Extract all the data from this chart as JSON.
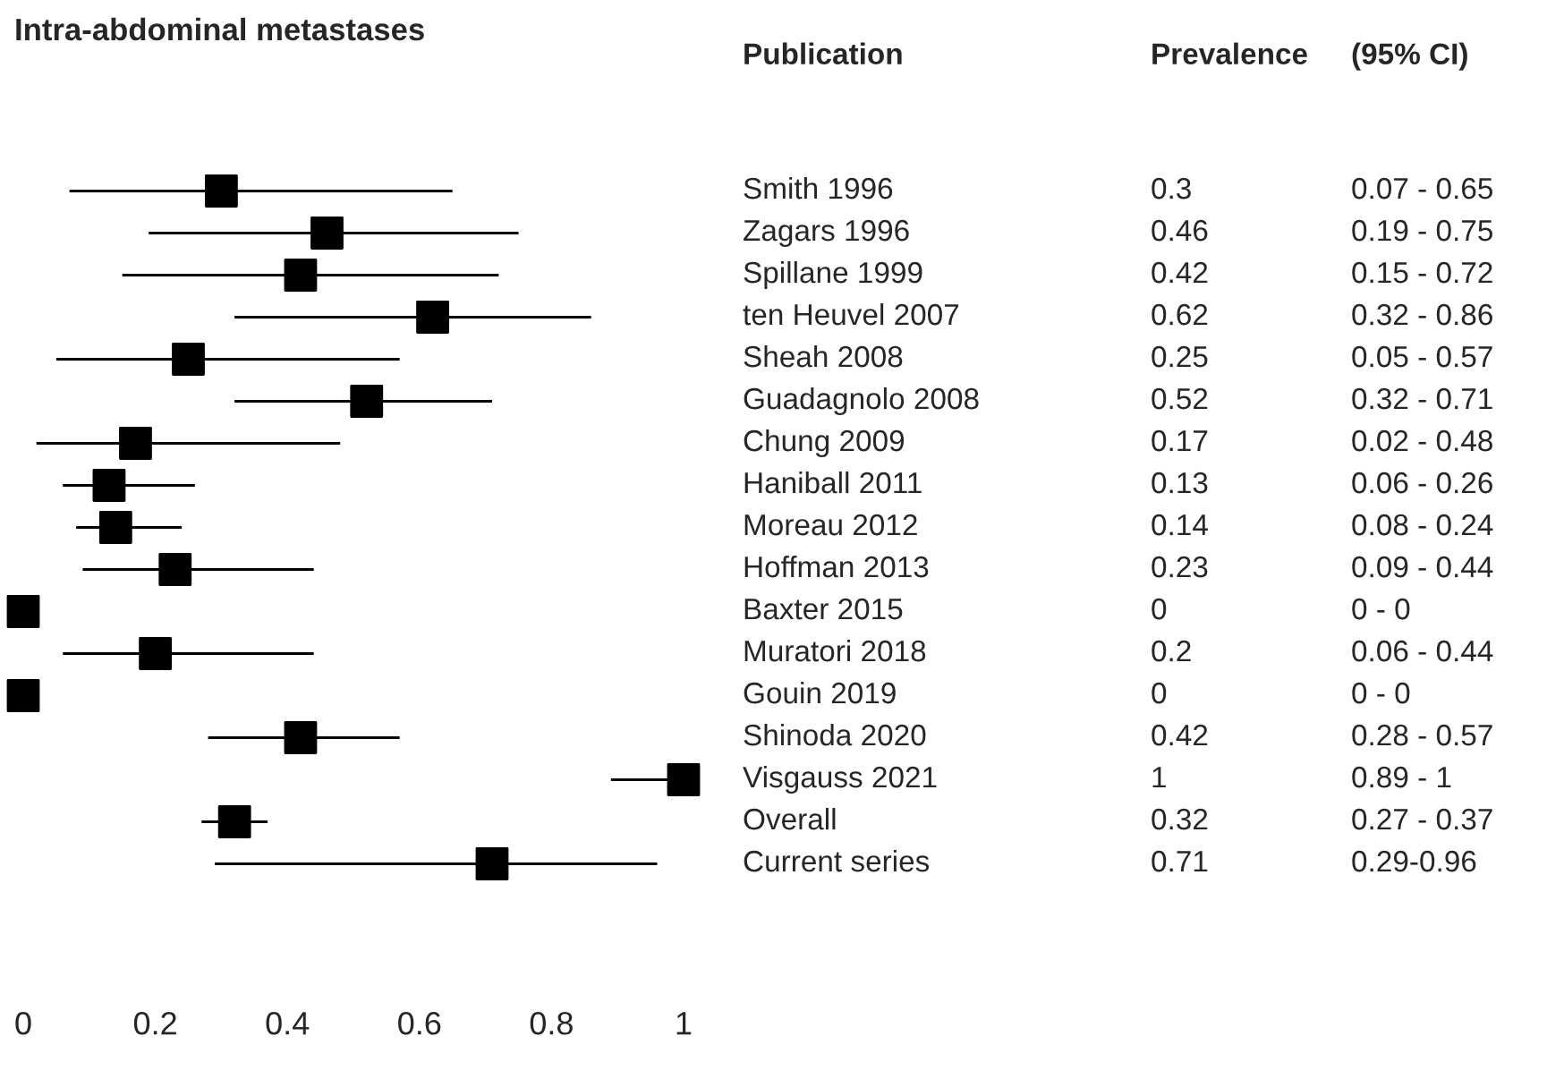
{
  "chart_data": {
    "type": "scatter",
    "orientation": "horizontal",
    "title": "Intra-abdominal metastases",
    "categories": [
      "Smith 1996",
      "Zagars 1996",
      "Spillane 1999",
      "ten Heuvel 2007",
      "Sheah 2008",
      "Guadagnolo 2008",
      "Chung 2009",
      "Haniball 2011",
      "Moreau 2012",
      "Hoffman 2013",
      "Baxter 2015",
      "Muratori 2018",
      "Gouin 2019",
      "Shinoda 2020",
      "Visgauss 2021",
      "Overall",
      "Current series"
    ],
    "values": [
      0.3,
      0.46,
      0.42,
      0.62,
      0.25,
      0.52,
      0.17,
      0.13,
      0.14,
      0.23,
      0,
      0.2,
      0,
      0.42,
      1,
      0.32,
      0.71
    ],
    "errors": [
      [
        0.07,
        0.65
      ],
      [
        0.19,
        0.75
      ],
      [
        0.15,
        0.72
      ],
      [
        0.32,
        0.86
      ],
      [
        0.05,
        0.57
      ],
      [
        0.32,
        0.71
      ],
      [
        0.02,
        0.48
      ],
      [
        0.06,
        0.26
      ],
      [
        0.08,
        0.24
      ],
      [
        0.09,
        0.44
      ],
      [
        0,
        0
      ],
      [
        0.06,
        0.44
      ],
      [
        0,
        0
      ],
      [
        0.28,
        0.57
      ],
      [
        0.89,
        1
      ],
      [
        0.27,
        0.37
      ],
      [
        0.29,
        0.96
      ]
    ],
    "annotations": [
      "Publication",
      "Prevalence",
      "(95% CI)",
      "0.3",
      "0.46",
      "0.42",
      "0.62",
      "0.25",
      "0.52",
      "0.17",
      "0.13",
      "0.14",
      "0.23",
      "0",
      "0.2",
      "0",
      "0.42",
      "1",
      "0.32",
      "0.71",
      "0.07 - 0.65",
      "0.19 - 0.75",
      "0.15 - 0.72",
      "0.32 - 0.86",
      "0.05 - 0.57",
      "0.32 - 0.71",
      "0.02 - 0.48",
      "0.06 - 0.26",
      "0.08 - 0.24",
      "0.09 - 0.44",
      "0 - 0",
      "0.06 - 0.44",
      "0 - 0",
      "0.28 - 0.57",
      "0.89 - 1",
      "0.27 - 0.37",
      "0.29-0.96"
    ],
    "color": "#000000",
    "marker": "square",
    "xlim": [
      0,
      1
    ],
    "xticks": [
      0,
      0.2,
      0.4,
      0.6,
      0.8,
      1
    ],
    "tick_labels": "x",
    "grid": false,
    "legend": false
  }
}
